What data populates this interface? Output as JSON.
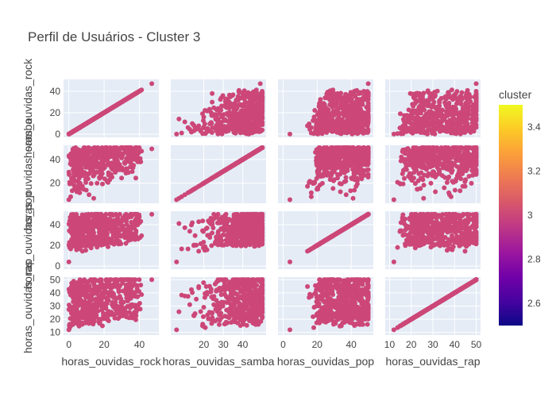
{
  "chart_data": {
    "type": "scatter",
    "title": "Perfil de Usuários - Cluster 3",
    "dimensions": [
      {
        "name": "horas_ouvidas_rock",
        "label": "horas_ouvidas_rock",
        "range": [
          -3,
          51
        ]
      },
      {
        "name": "horas_ouvidas_samba",
        "label": "horas_ouvidas_samba",
        "range": [
          3,
          52
        ]
      },
      {
        "name": "horas_ouvidas_pop",
        "label": "horas_ouvidas_pop",
        "range": [
          -3,
          53
        ]
      },
      {
        "name": "horas_ouvidas_rap",
        "label": "horas_ouvidas_rap",
        "range": [
          8,
          52
        ]
      }
    ],
    "x_ticks": [
      [
        "0",
        "20",
        "40"
      ],
      [
        "20",
        "30",
        "40"
      ],
      [
        "0",
        "20",
        "40"
      ],
      [
        "10",
        "20",
        "30",
        "40",
        "50"
      ]
    ],
    "x_tick_values": [
      [
        0,
        20,
        40
      ],
      [
        20,
        30,
        40
      ],
      [
        0,
        20,
        40
      ],
      [
        10,
        20,
        30,
        40,
        50
      ]
    ],
    "y_ticks": [
      [
        "0",
        "20",
        "40"
      ],
      [
        "20",
        "40"
      ],
      [
        "0",
        "20",
        "40"
      ],
      [
        "10",
        "20",
        "30",
        "40",
        "50"
      ]
    ],
    "y_tick_values": [
      [
        0,
        20,
        40
      ],
      [
        20,
        40
      ],
      [
        0,
        20,
        40
      ],
      [
        10,
        20,
        30,
        40,
        50
      ]
    ],
    "marker_color": "#cc4778",
    "cluster_value": 3,
    "colorbar": {
      "title": "cluster",
      "range": [
        2.5,
        3.5
      ],
      "ticks": [
        "2.6",
        "2.8",
        "3",
        "3.2",
        "3.4"
      ],
      "tick_values": [
        2.6,
        2.8,
        3.0,
        3.2,
        3.4
      ],
      "colors": [
        "#0d0887",
        "#46039f",
        "#7201a8",
        "#9c179e",
        "#bd3786",
        "#d8576b",
        "#ed7953",
        "#fb9f3a",
        "#fdca26",
        "#f0f921"
      ]
    },
    "grid": true
  }
}
